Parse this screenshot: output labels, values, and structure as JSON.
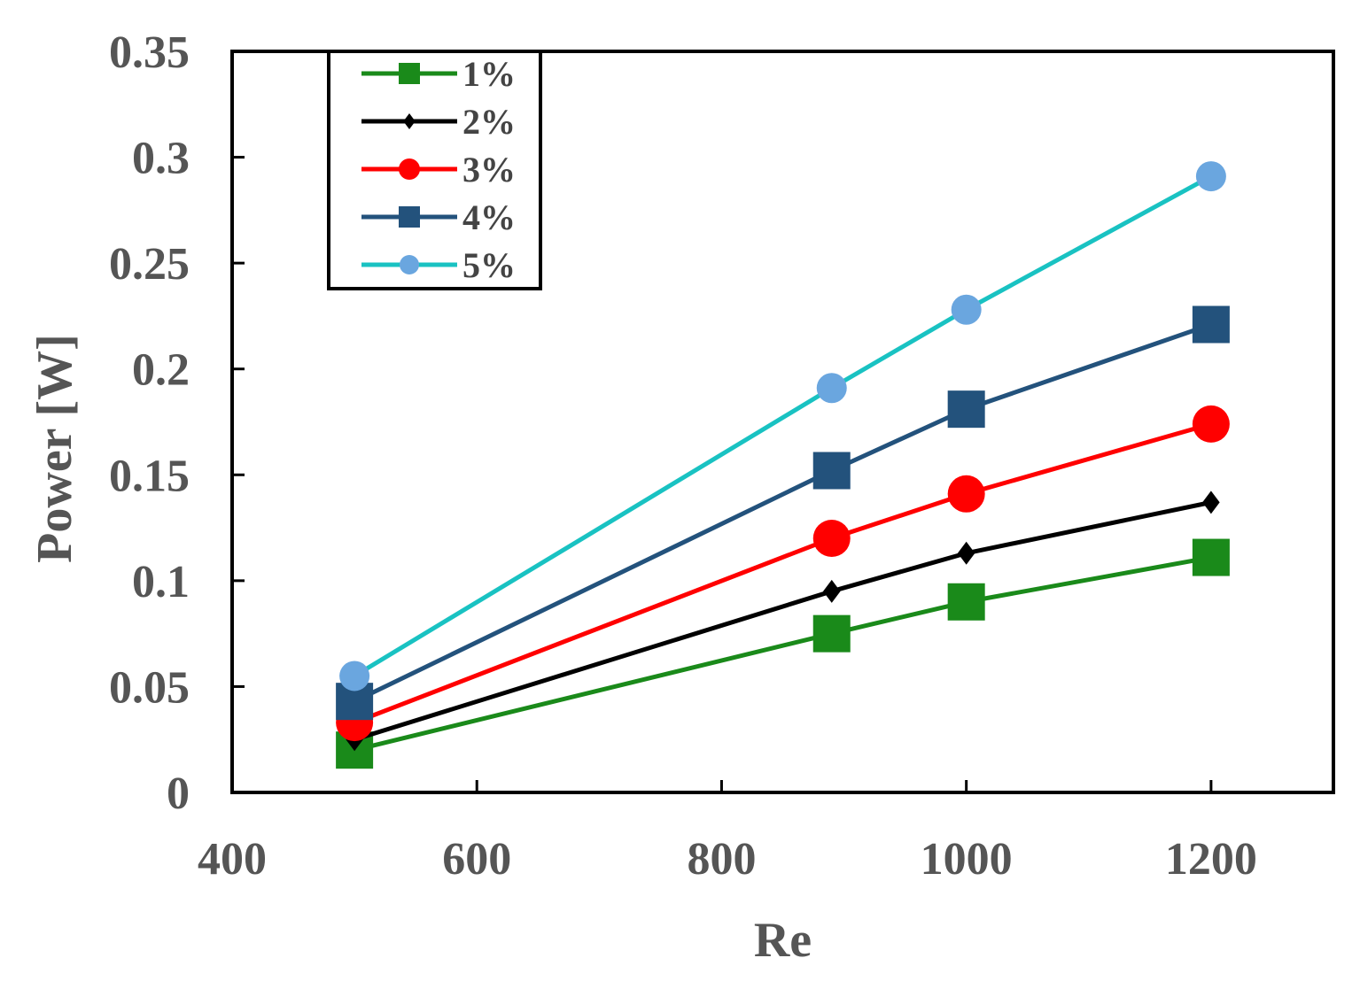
{
  "chart_data": {
    "type": "line",
    "title": "",
    "xlabel": "Re",
    "ylabel": "Power [W]",
    "xlim": [
      400,
      1300
    ],
    "ylim": [
      0,
      0.35
    ],
    "x_ticks": [
      400,
      600,
      800,
      1000,
      1200
    ],
    "x_tick_labels": [
      "400",
      "600",
      "800",
      "1000",
      "1200"
    ],
    "y_ticks": [
      0,
      0.05,
      0.1,
      0.15,
      0.2,
      0.25,
      0.3,
      0.35
    ],
    "y_tick_labels": [
      "0",
      "0.05",
      "0.1",
      "0.15",
      "0.2",
      "0.25",
      "0.3",
      "0.35"
    ],
    "grid": false,
    "legend_position": "top-left",
    "series": [
      {
        "name": "1%",
        "color": "#1a8a1a",
        "marker": "square",
        "marker_color": "#1a8a1a",
        "marker_size": "large",
        "x": [
          500,
          890,
          1000,
          1200
        ],
        "y": [
          0.02,
          0.075,
          0.09,
          0.111
        ]
      },
      {
        "name": "2%",
        "color": "#000000",
        "marker": "diamond",
        "marker_color": "#000000",
        "marker_size": "small",
        "x": [
          500,
          890,
          1000,
          1200
        ],
        "y": [
          0.025,
          0.095,
          0.113,
          0.137
        ]
      },
      {
        "name": "3%",
        "color": "#ff0000",
        "marker": "circle",
        "marker_color": "#ff0000",
        "marker_size": "large",
        "x": [
          500,
          890,
          1000,
          1200
        ],
        "y": [
          0.033,
          0.12,
          0.141,
          0.174
        ]
      },
      {
        "name": "4%",
        "color": "#23527c",
        "marker": "square",
        "marker_color": "#23527c",
        "marker_size": "large",
        "x": [
          500,
          890,
          1000,
          1200
        ],
        "y": [
          0.043,
          0.152,
          0.181,
          0.221
        ]
      },
      {
        "name": "5%",
        "color": "#19c2c2",
        "marker": "circle",
        "marker_color": "#6aa6df",
        "marker_size": "medium",
        "x": [
          500,
          890,
          1000,
          1200
        ],
        "y": [
          0.055,
          0.191,
          0.228,
          0.291
        ]
      }
    ]
  }
}
